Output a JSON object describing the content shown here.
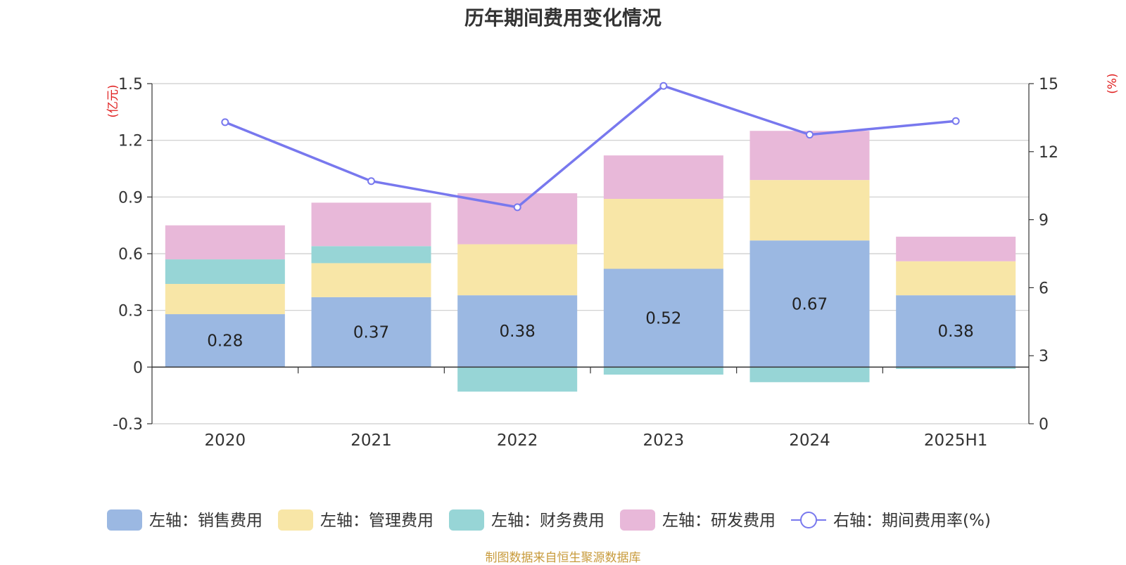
{
  "chart_data": {
    "type": "bar",
    "title": "历年期间费用变化情况",
    "categories": [
      "2020",
      "2021",
      "2022",
      "2023",
      "2024",
      "2025H1"
    ],
    "series": [
      {
        "name": "左轴：销售费用",
        "axis": "left",
        "color": "#9bb8e2",
        "values": [
          0.28,
          0.37,
          0.38,
          0.52,
          0.67,
          0.38
        ],
        "labels": [
          "0.28",
          "0.37",
          "0.38",
          "0.52",
          "0.67",
          "0.38"
        ]
      },
      {
        "name": "左轴：管理费用",
        "axis": "left",
        "color": "#f8e6a7",
        "values": [
          0.16,
          0.18,
          0.27,
          0.37,
          0.32,
          0.18
        ]
      },
      {
        "name": "左轴：财务费用",
        "axis": "left",
        "color": "#97d5d6",
        "values": [
          0.13,
          0.09,
          -0.13,
          -0.04,
          -0.08,
          -0.01
        ]
      },
      {
        "name": "左轴：研发费用",
        "axis": "left",
        "color": "#e8b8d9",
        "values": [
          0.18,
          0.23,
          0.27,
          0.23,
          0.26,
          0.13
        ]
      }
    ],
    "line_series": {
      "name": "右轴：期间费用率(%)",
      "axis": "right",
      "color": "#7878ee",
      "values": [
        13.3,
        10.7,
        9.55,
        14.9,
        12.75,
        13.35
      ]
    },
    "left_axis": {
      "unit": "(亿元)",
      "ylim": [
        -0.3,
        1.5
      ],
      "ticks": [
        -0.3,
        0,
        0.3,
        0.6,
        0.9,
        1.2,
        1.5
      ],
      "tick_labels": [
        "-0.3",
        "0",
        "0.3",
        "0.6",
        "0.9",
        "1.2",
        "1.5"
      ]
    },
    "right_axis": {
      "unit": "(%)",
      "ylim": [
        0,
        15
      ],
      "ticks": [
        0,
        3,
        6,
        9,
        12,
        15
      ],
      "tick_labels": [
        "0",
        "3",
        "6",
        "9",
        "12",
        "15"
      ]
    },
    "stacking": "positive values stack upward from 0, negative values stack downward from 0",
    "grid": true,
    "legend_position": "bottom",
    "source_note": "制图数据来自恒生聚源数据库"
  }
}
